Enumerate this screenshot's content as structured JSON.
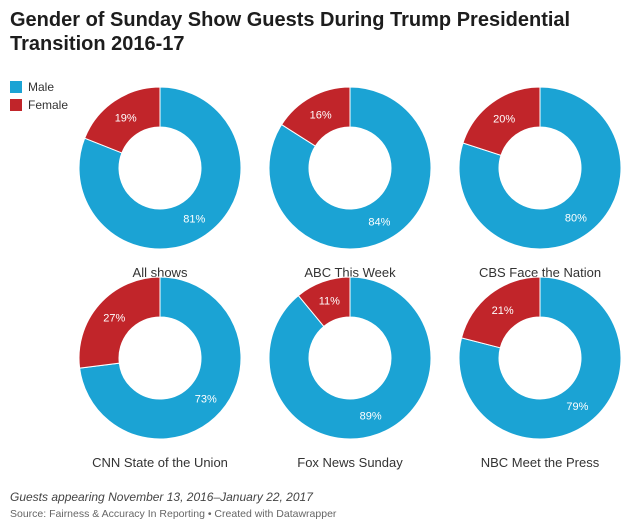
{
  "title": "Gender of Sunday Show Guests During Trump Presidential Transition 2016-17",
  "legend": [
    {
      "label": "Male",
      "color": "#1ba3d4"
    },
    {
      "label": "Female",
      "color": "#c1252a"
    }
  ],
  "chart_data": [
    {
      "type": "pie",
      "title": "All shows",
      "categories": [
        "Male",
        "Female"
      ],
      "values": [
        81,
        19
      ]
    },
    {
      "type": "pie",
      "title": "ABC This Week",
      "categories": [
        "Male",
        "Female"
      ],
      "values": [
        84,
        16
      ]
    },
    {
      "type": "pie",
      "title": "CBS Face the Nation",
      "categories": [
        "Male",
        "Female"
      ],
      "values": [
        80,
        20
      ]
    },
    {
      "type": "pie",
      "title": "CNN State of the Union",
      "categories": [
        "Male",
        "Female"
      ],
      "values": [
        73,
        27
      ]
    },
    {
      "type": "pie",
      "title": "Fox News Sunday",
      "categories": [
        "Male",
        "Female"
      ],
      "values": [
        89,
        11
      ]
    },
    {
      "type": "pie",
      "title": "NBC Meet the Press",
      "categories": [
        "Male",
        "Female"
      ],
      "values": [
        79,
        21
      ]
    }
  ],
  "note": "Guests appearing November 13, 2016–January 22, 2017",
  "source": "Source: Fairness & Accuracy In Reporting • Created with Datawrapper"
}
